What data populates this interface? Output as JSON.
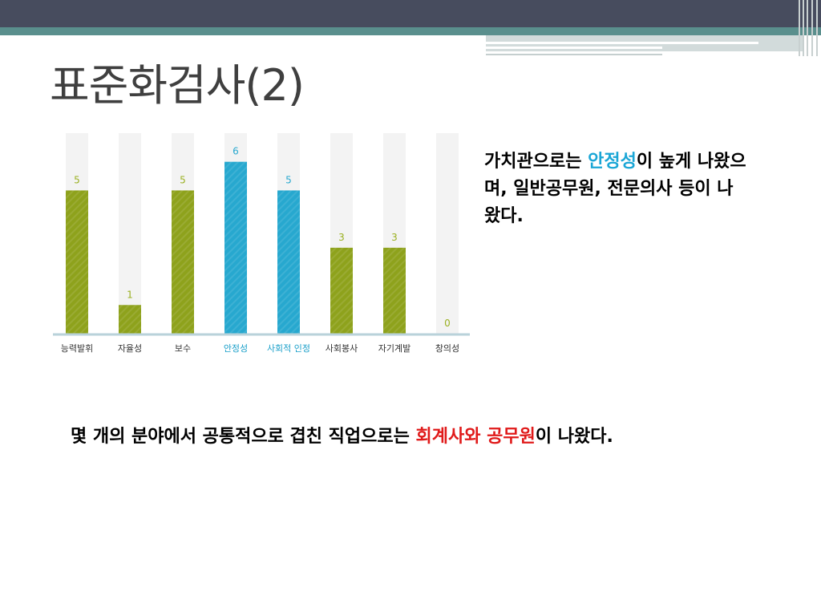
{
  "slide": {
    "title": "표준화검사(2)"
  },
  "side_note": {
    "before": "가치관으로는 ",
    "highlight": "안정성",
    "after": "이 높게 나왔으며, 일반공무원, 전문의사 등이 나왔다.",
    "highlight_color": "#1aa6d6"
  },
  "bottom_note": {
    "before": "몇 개의 분야에서 공통적으로 겹친 직업으로는 ",
    "highlight": "회계사와 공무원",
    "after": "이 나왔다.",
    "highlight_color": "#e01a1a"
  },
  "chart_data": {
    "type": "bar",
    "categories": [
      "능력발휘",
      "자율성",
      "보수",
      "안정성",
      "사회적 인정",
      "사회봉사",
      "자기계발",
      "창의성"
    ],
    "values": [
      5,
      1,
      5,
      6,
      5,
      3,
      3,
      0
    ],
    "highlighted": [
      "안정성",
      "사회적 인정"
    ],
    "ylim": [
      0,
      7
    ],
    "grid": false,
    "colors": {
      "default_bar": "#8ea21c",
      "highlight_bar": "#27a8cf",
      "track": "#f3f3f3",
      "default_label": "#9ab020",
      "highlight_label": "#27a8cf",
      "category_text": "#333333",
      "highlight_category_text": "#1a9fc9",
      "baseline": "#b9d2da"
    }
  }
}
